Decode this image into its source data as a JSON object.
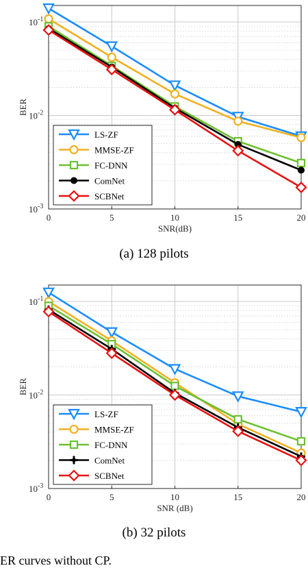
{
  "chart_data": [
    {
      "type": "line",
      "title": "",
      "xlabel": "SNR(dB)",
      "ylabel": "BER",
      "yscale": "log",
      "xlim": [
        0,
        20
      ],
      "ylim": [
        0.001,
        0.15
      ],
      "xticks": [
        "0",
        "5",
        "10",
        "15",
        "20"
      ],
      "yticks": [
        {
          "base": "10",
          "exp": "-1",
          "value": 0.1
        },
        {
          "base": "10",
          "exp": "-2",
          "value": 0.01
        },
        {
          "base": "10",
          "exp": "-3",
          "value": 0.001
        }
      ],
      "grid": true,
      "legend_position": "bottom-left",
      "x": [
        0,
        5,
        10,
        15,
        20
      ],
      "series": [
        {
          "name": "LS-ZF",
          "color": "#1a8cff",
          "marker": "triangle-down",
          "values": [
            0.14,
            0.055,
            0.021,
            0.0097,
            0.006
          ]
        },
        {
          "name": "MMSE-ZF",
          "color": "#f0b020",
          "marker": "circle-open",
          "values": [
            0.108,
            0.042,
            0.017,
            0.0087,
            0.0058
          ]
        },
        {
          "name": "FC-DNN",
          "color": "#6cc030",
          "marker": "square-open",
          "values": [
            0.09,
            0.034,
            0.0125,
            0.0053,
            0.0031
          ]
        },
        {
          "name": "ComNet",
          "color": "#000000",
          "marker": "circle-filled",
          "values": [
            0.085,
            0.033,
            0.012,
            0.0049,
            0.0026
          ]
        },
        {
          "name": "SCBNet",
          "color": "#e81010",
          "marker": "diamond-open",
          "values": [
            0.082,
            0.031,
            0.0115,
            0.0042,
            0.0017
          ]
        }
      ],
      "caption": "(a) 128 pilots"
    },
    {
      "type": "line",
      "title": "",
      "xlabel": "SNR (dB)",
      "ylabel": "BER",
      "yscale": "log",
      "xlim": [
        0,
        20
      ],
      "ylim": [
        0.001,
        0.15
      ],
      "xticks": [
        "0",
        "5",
        "10",
        "15",
        "20"
      ],
      "yticks": [
        {
          "base": "10",
          "exp": "-1",
          "value": 0.1
        },
        {
          "base": "10",
          "exp": "-2",
          "value": 0.01
        },
        {
          "base": "10",
          "exp": "-3",
          "value": 0.001
        }
      ],
      "grid": true,
      "legend_position": "bottom-left",
      "x": [
        0,
        5,
        10,
        15,
        20
      ],
      "series": [
        {
          "name": "LS-ZF",
          "color": "#1a8cff",
          "marker": "triangle-down",
          "values": [
            0.125,
            0.047,
            0.019,
            0.0097,
            0.0066
          ]
        },
        {
          "name": "MMSE-ZF",
          "color": "#f0b020",
          "marker": "circle-open",
          "values": [
            0.1,
            0.038,
            0.0135,
            0.0049,
            0.0024
          ]
        },
        {
          "name": "FC-DNN",
          "color": "#6cc030",
          "marker": "square-open",
          "values": [
            0.09,
            0.035,
            0.0125,
            0.0055,
            0.0032
          ]
        },
        {
          "name": "ComNet",
          "color": "#000000",
          "marker": "star",
          "values": [
            0.082,
            0.031,
            0.0105,
            0.0045,
            0.0022
          ]
        },
        {
          "name": "SCBNet",
          "color": "#e81010",
          "marker": "diamond-open",
          "values": [
            0.078,
            0.028,
            0.01,
            0.0041,
            0.002
          ]
        }
      ],
      "caption": "(b) 32 pilots"
    }
  ],
  "footer_text": "ER curves without CP."
}
